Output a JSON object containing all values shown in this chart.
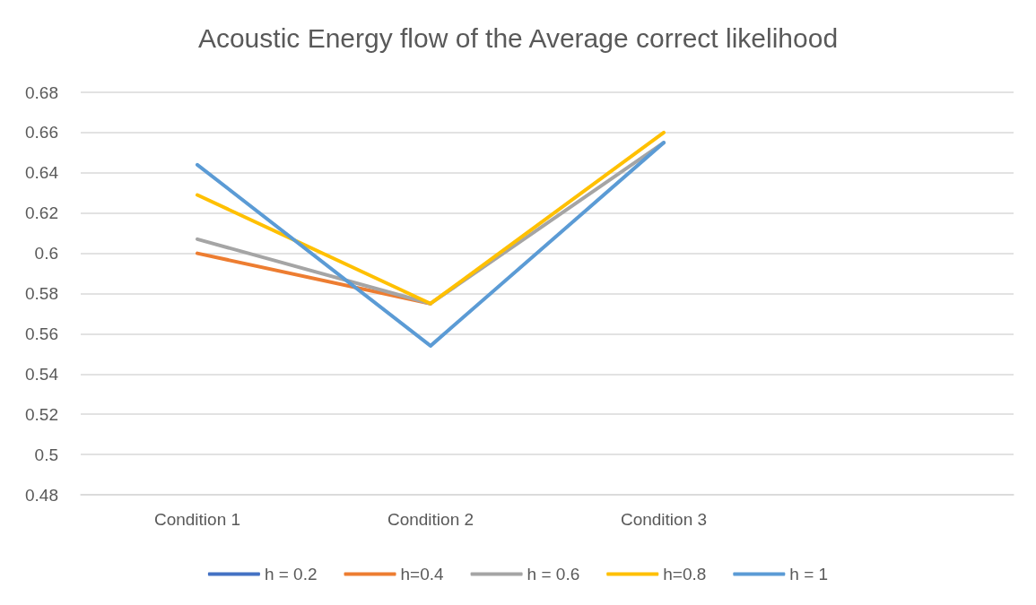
{
  "chart_data": {
    "type": "line",
    "title": "Acoustic Energy flow of the Average correct likelihood",
    "categories": [
      "Condition 1",
      "Condition 2",
      "Condition 3",
      null
    ],
    "series": [
      {
        "name": "h = 0.2",
        "color": "#4472c4",
        "values": [
          null,
          null,
          null,
          null
        ]
      },
      {
        "name": "h=0.4",
        "color": "#ed7d31",
        "values": [
          0.6,
          0.575,
          null,
          null
        ]
      },
      {
        "name": "h = 0.6",
        "color": "#a5a5a5",
        "values": [
          0.607,
          0.575,
          0.655,
          null
        ]
      },
      {
        "name": "h=0.8",
        "color": "#ffc000",
        "values": [
          0.629,
          0.575,
          0.66,
          null
        ]
      },
      {
        "name": "h = 1",
        "color": "#5b9bd5",
        "values": [
          0.644,
          0.554,
          0.655,
          null
        ]
      }
    ],
    "ylim": [
      0.48,
      0.68
    ],
    "yticks": [
      0.48,
      0.5,
      0.52,
      0.54,
      0.56,
      0.58,
      0.6,
      0.62,
      0.64,
      0.66,
      0.68
    ],
    "grid": "y",
    "legend": "bottom",
    "marker": "none",
    "line_style": "solid"
  }
}
